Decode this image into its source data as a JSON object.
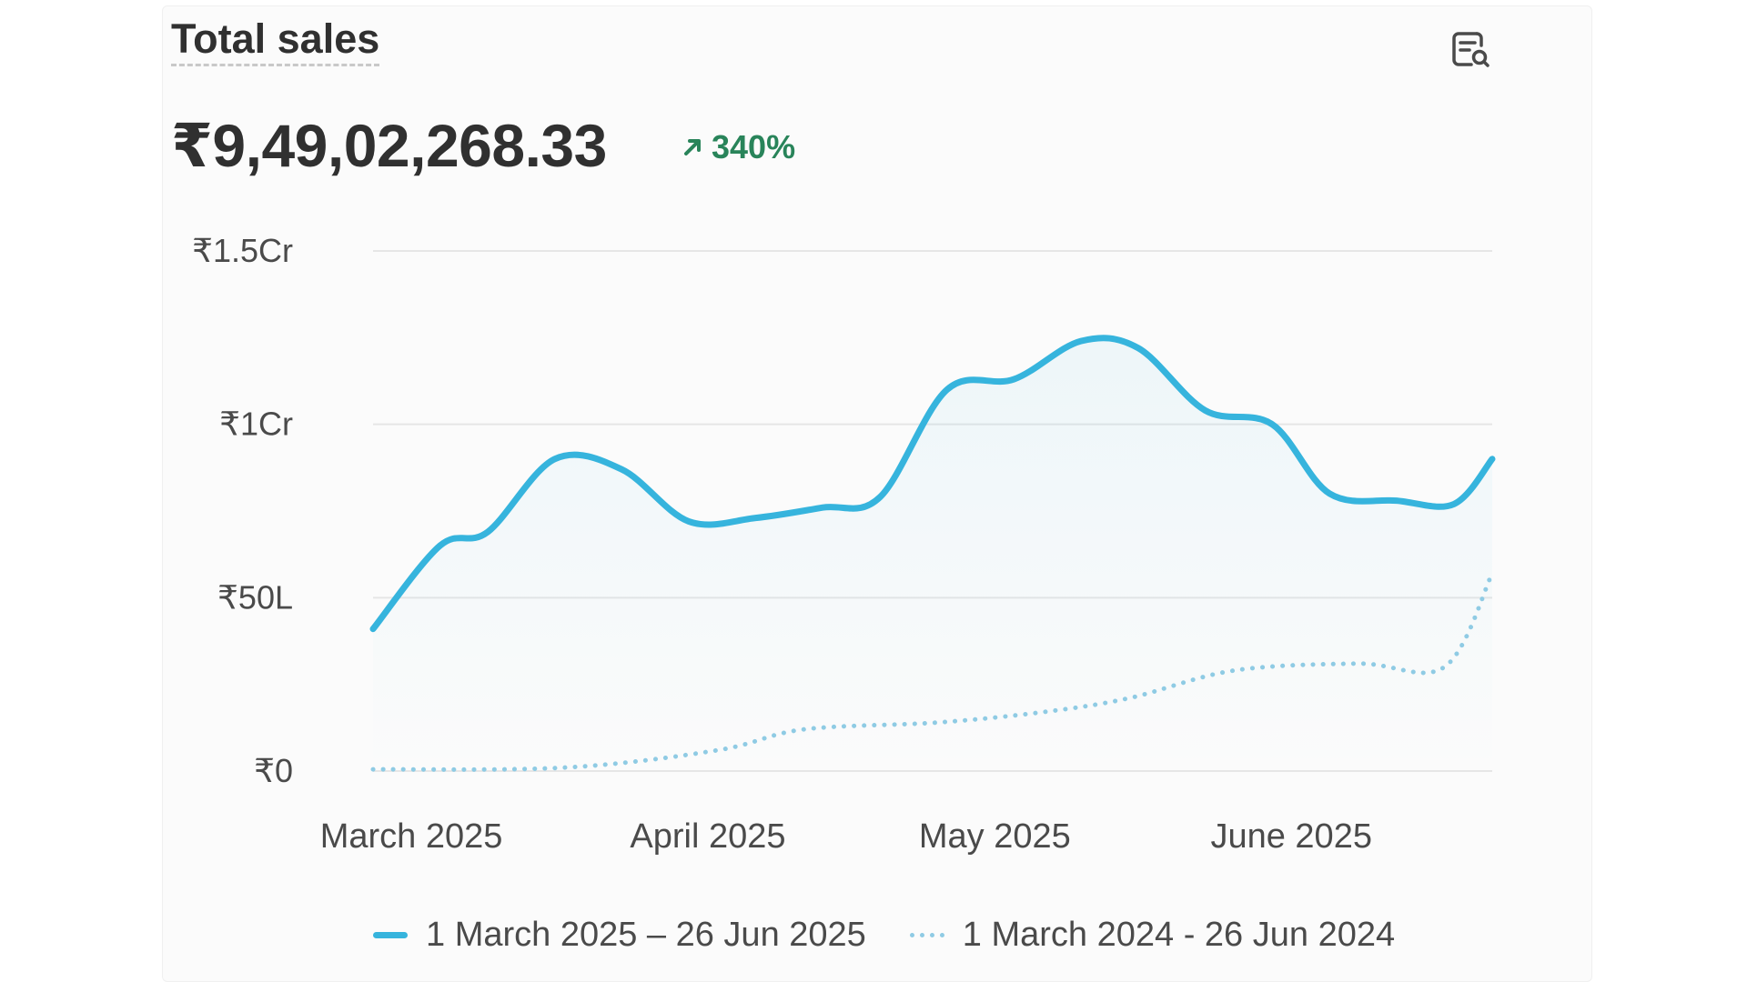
{
  "card": {
    "title": "Total sales",
    "total_value": "₹9,49,02,268.33",
    "change": "340%",
    "change_icon": "arrow-up-right-icon",
    "action_icon": "chart-search-icon"
  },
  "colors": {
    "current_series": "#36b4dd",
    "previous_series": "#8fcbe4",
    "positive_change": "#29845a",
    "gridline": "#e6e6e6",
    "axis_text": "#4a4a4a"
  },
  "chart_data": {
    "type": "line",
    "title": "Total sales",
    "xlabel": "",
    "ylabel": "",
    "ylim": [
      0,
      15000000
    ],
    "y_ticks": [
      0,
      5000000,
      10000000,
      15000000
    ],
    "y_tick_labels": [
      "₹0",
      "₹50L",
      "₹1Cr",
      "₹1.5Cr"
    ],
    "x_tick_labels": [
      "March 2025",
      "April 2025",
      "May 2025",
      "June 2025"
    ],
    "x_tick_dates": [
      "2025-03-05",
      "2025-04-05",
      "2025-05-05",
      "2025-06-05"
    ],
    "x_range": [
      "2025-03-01",
      "2025-06-26"
    ],
    "grid": true,
    "legend_position": "bottom",
    "series": [
      {
        "name": "1 March 2025 – 26 Jun 2025",
        "style": "solid",
        "area_fill": true,
        "points": [
          [
            "2025-03-01",
            4100000
          ],
          [
            "2025-03-08",
            6500000
          ],
          [
            "2025-03-13",
            6900000
          ],
          [
            "2025-03-20",
            9000000
          ],
          [
            "2025-03-27",
            8700000
          ],
          [
            "2025-04-03",
            7200000
          ],
          [
            "2025-04-10",
            7300000
          ],
          [
            "2025-04-17",
            7600000
          ],
          [
            "2025-04-23",
            7900000
          ],
          [
            "2025-04-30",
            11000000
          ],
          [
            "2025-05-07",
            11300000
          ],
          [
            "2025-05-14",
            12400000
          ],
          [
            "2025-05-20",
            12200000
          ],
          [
            "2025-05-27",
            10400000
          ],
          [
            "2025-06-03",
            10000000
          ],
          [
            "2025-06-09",
            8000000
          ],
          [
            "2025-06-16",
            7800000
          ],
          [
            "2025-06-22",
            7700000
          ],
          [
            "2025-06-26",
            9000000
          ]
        ]
      },
      {
        "name": "1 March 2024 - 26 Jun 2024",
        "style": "dotted",
        "area_fill": false,
        "points": [
          [
            "2025-03-01",
            50000
          ],
          [
            "2025-03-21",
            100000
          ],
          [
            "2025-04-06",
            600000
          ],
          [
            "2025-04-15",
            1200000
          ],
          [
            "2025-04-29",
            1400000
          ],
          [
            "2025-05-10",
            1700000
          ],
          [
            "2025-05-19",
            2100000
          ],
          [
            "2025-05-30",
            2900000
          ],
          [
            "2025-06-12",
            3100000
          ],
          [
            "2025-06-21",
            3000000
          ],
          [
            "2025-06-26",
            5700000
          ]
        ]
      }
    ]
  }
}
